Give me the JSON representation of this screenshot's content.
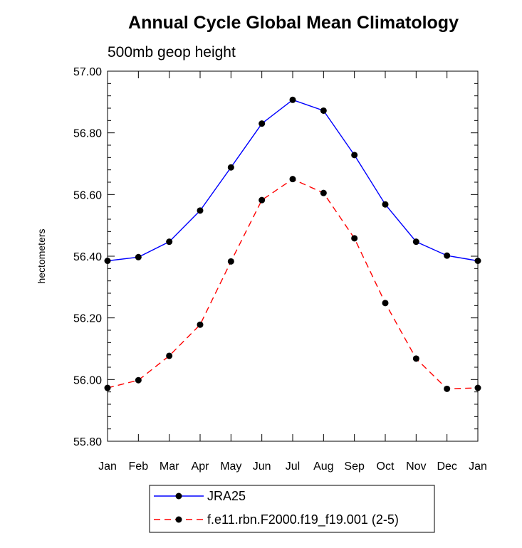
{
  "chart_data": {
    "type": "line",
    "title": "Annual Cycle Global Mean Climatology",
    "subtitle": "500mb geop height",
    "xlabel": "",
    "ylabel": "hectometers",
    "categories": [
      "Jan",
      "Feb",
      "Mar",
      "Apr",
      "May",
      "Jun",
      "Jul",
      "Aug",
      "Sep",
      "Oct",
      "Nov",
      "Dec",
      "Jan"
    ],
    "ylim": [
      55.8,
      57.0
    ],
    "yticks": [
      "55.80",
      "56.00",
      "56.20",
      "56.40",
      "56.60",
      "56.80",
      "57.00"
    ],
    "grid": false,
    "legend_position": "bottom",
    "series": [
      {
        "name": "JRA25",
        "color": "#0000ff",
        "dash": "solid",
        "marker": "filled-circle",
        "values": [
          56.385,
          56.397,
          56.447,
          56.548,
          56.688,
          56.83,
          56.907,
          56.872,
          56.728,
          56.568,
          56.447,
          56.402,
          56.385
        ]
      },
      {
        "name": "f.e11.rbn.F2000.f19_f19.001 (2-5)",
        "color": "#ff0000",
        "dash": "dashed",
        "marker": "filled-circle",
        "values": [
          55.973,
          55.998,
          56.077,
          56.178,
          56.383,
          56.582,
          56.65,
          56.605,
          56.458,
          56.248,
          56.068,
          55.97,
          55.973
        ]
      }
    ]
  }
}
